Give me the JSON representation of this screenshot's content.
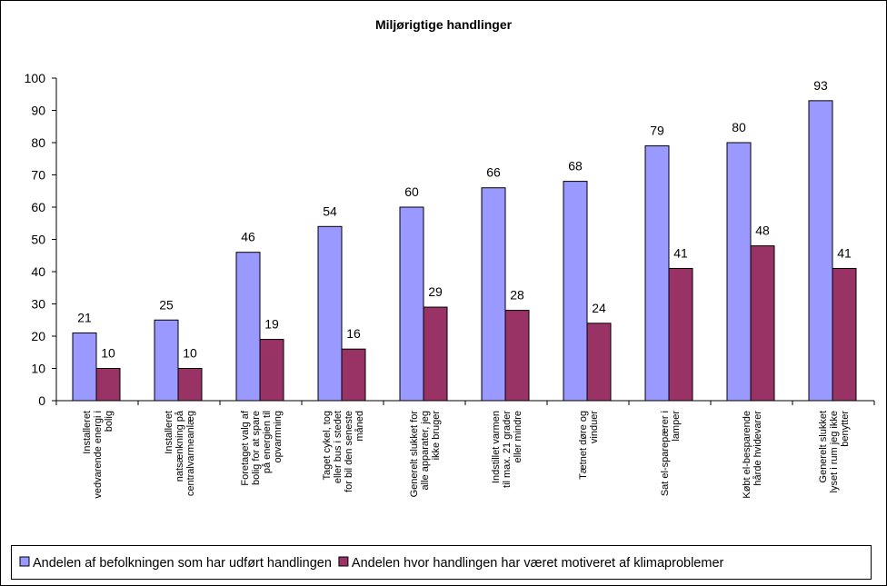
{
  "chart_data": {
    "type": "bar",
    "title": "Miljørigtige handlinger",
    "categories": [
      "Installeret vedvarende energi i bolig",
      "Installeret natsænkning på centralvarmeanlæg",
      "Foretaget valg af bolig for at spare på energien til opvarmning",
      "Taget cykel, tog eller bus i stedet for bil den seneste måned",
      "Generelt slukket for alle apparater, jeg ikke bruger",
      "Indstillet varmen til max. 21 grader eller mindre",
      "Tætnet døre og vinduer",
      "Sat el-sparepærer i lamper",
      "Købt el-besparende hårde hvidevarer",
      "Generelt slukket lyset i rum jeg ikke benytter"
    ],
    "series": [
      {
        "name": "Andelen af befolkningen som har udført handlingen",
        "color": "#9999ff",
        "values": [
          21,
          25,
          46,
          54,
          60,
          66,
          68,
          79,
          80,
          93
        ]
      },
      {
        "name": "Andelen hvor handlingen har været motiveret af klimaproblemer",
        "color": "#993366",
        "values": [
          10,
          10,
          19,
          16,
          29,
          28,
          24,
          41,
          48,
          41
        ]
      }
    ],
    "ylim": [
      0,
      100
    ],
    "yticks": [
      0,
      10,
      20,
      30,
      40,
      50,
      60,
      70,
      80,
      90,
      100
    ],
    "grid": false,
    "legend": "bottom"
  }
}
